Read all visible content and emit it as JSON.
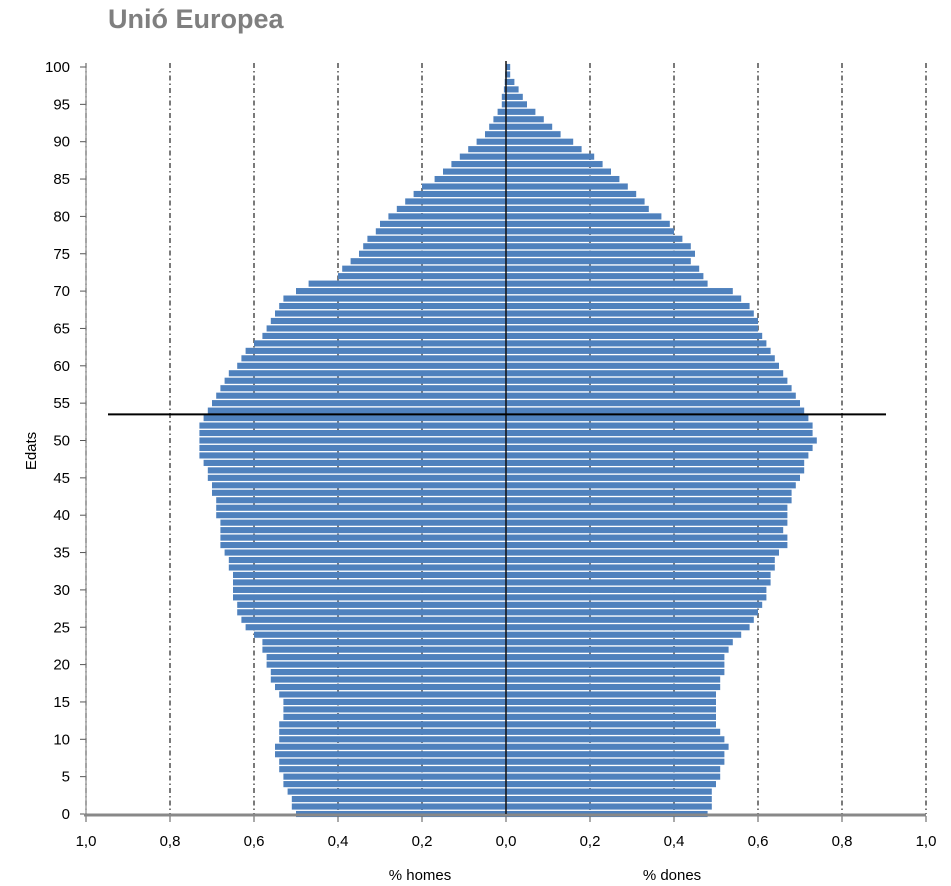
{
  "chart_data": {
    "type": "bar",
    "orientation": "horizontal",
    "subtype": "population-pyramid",
    "title": "Unió Europea",
    "ylabel": "Edats",
    "xlabel_left": "% homes",
    "xlabel_right": "% dones",
    "x_ticks": [
      "1,0",
      "0,8",
      "0,6",
      "0,4",
      "0,2",
      "0,0",
      "0,2",
      "0,4",
      "0,6",
      "0,8",
      "1,0"
    ],
    "y_ticks": [
      0,
      5,
      10,
      15,
      20,
      25,
      30,
      35,
      40,
      45,
      50,
      55,
      60,
      65,
      70,
      75,
      80,
      85,
      90,
      95,
      100
    ],
    "xlim": [
      -1.0,
      1.0
    ],
    "ylim": [
      0,
      100
    ],
    "grid": "vertical dash-dot",
    "reference_line_age": 53.5,
    "bar_color": "#4f81bd",
    "ages": [
      0,
      1,
      2,
      3,
      4,
      5,
      6,
      7,
      8,
      9,
      10,
      11,
      12,
      13,
      14,
      15,
      16,
      17,
      18,
      19,
      20,
      21,
      22,
      23,
      24,
      25,
      26,
      27,
      28,
      29,
      30,
      31,
      32,
      33,
      34,
      35,
      36,
      37,
      38,
      39,
      40,
      41,
      42,
      43,
      44,
      45,
      46,
      47,
      48,
      49,
      50,
      51,
      52,
      53,
      54,
      55,
      56,
      57,
      58,
      59,
      60,
      61,
      62,
      63,
      64,
      65,
      66,
      67,
      68,
      69,
      70,
      71,
      72,
      73,
      74,
      75,
      76,
      77,
      78,
      79,
      80,
      81,
      82,
      83,
      84,
      85,
      86,
      87,
      88,
      89,
      90,
      91,
      92,
      93,
      94,
      95,
      96,
      97,
      98,
      99,
      100
    ],
    "series": [
      {
        "name": "% homes",
        "values": [
          0.5,
          0.51,
          0.51,
          0.52,
          0.53,
          0.53,
          0.54,
          0.54,
          0.55,
          0.55,
          0.54,
          0.54,
          0.54,
          0.53,
          0.53,
          0.53,
          0.54,
          0.55,
          0.56,
          0.56,
          0.57,
          0.57,
          0.58,
          0.58,
          0.6,
          0.62,
          0.63,
          0.64,
          0.64,
          0.65,
          0.65,
          0.65,
          0.65,
          0.66,
          0.66,
          0.67,
          0.68,
          0.68,
          0.68,
          0.68,
          0.69,
          0.69,
          0.69,
          0.7,
          0.7,
          0.71,
          0.71,
          0.72,
          0.73,
          0.73,
          0.73,
          0.73,
          0.73,
          0.72,
          0.71,
          0.7,
          0.69,
          0.68,
          0.67,
          0.66,
          0.64,
          0.63,
          0.62,
          0.6,
          0.58,
          0.57,
          0.56,
          0.55,
          0.54,
          0.53,
          0.5,
          0.47,
          0.4,
          0.39,
          0.37,
          0.35,
          0.34,
          0.33,
          0.31,
          0.3,
          0.28,
          0.26,
          0.24,
          0.22,
          0.2,
          0.17,
          0.15,
          0.13,
          0.11,
          0.09,
          0.07,
          0.05,
          0.04,
          0.03,
          0.02,
          0.01,
          0.01,
          0.005,
          0.003,
          0.002,
          0.001
        ]
      },
      {
        "name": "% dones",
        "values": [
          0.48,
          0.49,
          0.49,
          0.49,
          0.5,
          0.51,
          0.51,
          0.52,
          0.52,
          0.53,
          0.52,
          0.51,
          0.5,
          0.5,
          0.5,
          0.5,
          0.5,
          0.51,
          0.51,
          0.52,
          0.52,
          0.52,
          0.53,
          0.54,
          0.56,
          0.58,
          0.59,
          0.6,
          0.61,
          0.62,
          0.62,
          0.63,
          0.63,
          0.64,
          0.64,
          0.65,
          0.67,
          0.67,
          0.66,
          0.67,
          0.67,
          0.67,
          0.68,
          0.68,
          0.69,
          0.7,
          0.71,
          0.71,
          0.72,
          0.73,
          0.74,
          0.73,
          0.73,
          0.72,
          0.71,
          0.7,
          0.69,
          0.68,
          0.67,
          0.66,
          0.65,
          0.64,
          0.63,
          0.62,
          0.61,
          0.6,
          0.6,
          0.59,
          0.58,
          0.56,
          0.54,
          0.48,
          0.47,
          0.46,
          0.44,
          0.45,
          0.44,
          0.42,
          0.4,
          0.39,
          0.37,
          0.34,
          0.33,
          0.31,
          0.29,
          0.27,
          0.25,
          0.23,
          0.21,
          0.18,
          0.16,
          0.13,
          0.11,
          0.09,
          0.07,
          0.05,
          0.04,
          0.03,
          0.02,
          0.01,
          0.01
        ]
      }
    ]
  }
}
